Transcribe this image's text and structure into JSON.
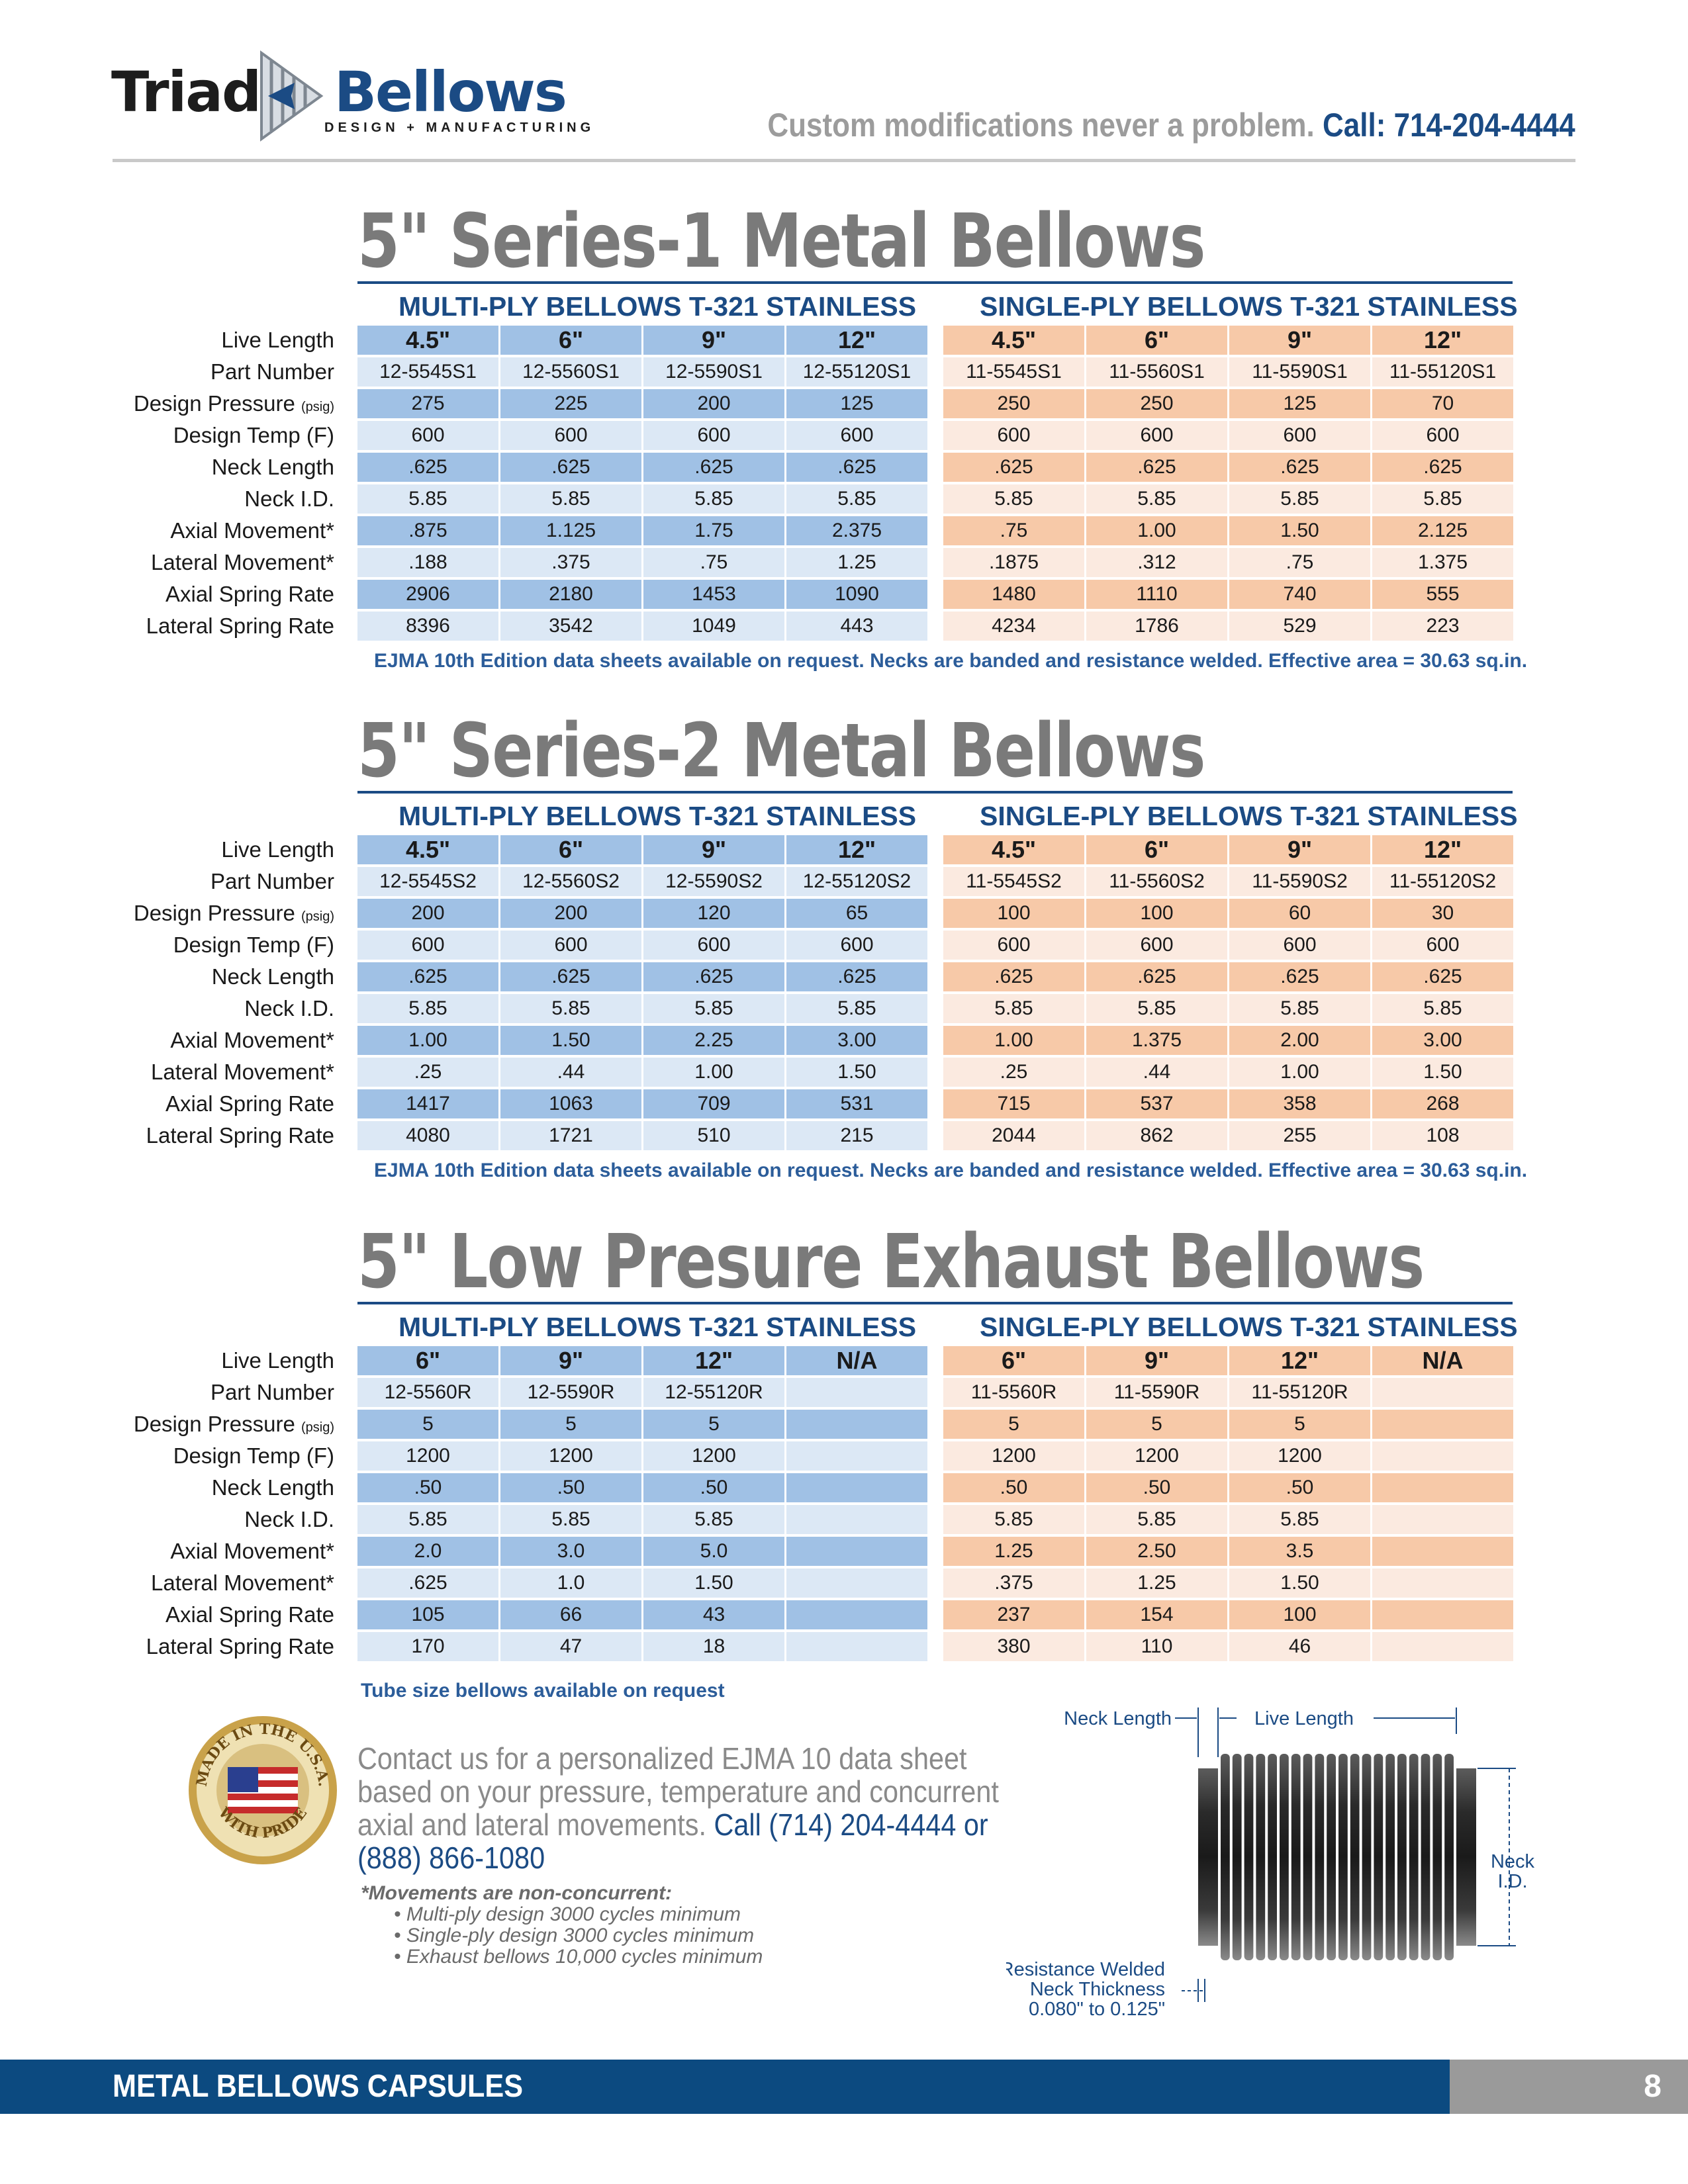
{
  "header": {
    "logo_left": "Triad",
    "logo_right": "Bellows",
    "logo_sub": "DESIGN + MANUFACTURING",
    "tagline": "Custom modifications never a problem.",
    "tagline_call": "Call: 714-204-4444"
  },
  "row_labels": [
    "Live Length",
    "Part Number",
    "Design Pressure",
    "Design Temp (F)",
    "Neck Length",
    "Neck I.D.",
    "Axial Movement*",
    "Lateral Movement*",
    "Axial Spring Rate",
    "Lateral Spring Rate"
  ],
  "pressure_unit": "(psig)",
  "sections": [
    {
      "title": "5\" Series-1 Metal Bellows",
      "multi_head": "MULTI-PLY BELLOWS T-321 STAINLESS",
      "single_head": "SINGLE-PLY BELLOWS T-321 STAINLESS",
      "multi": [
        [
          "4.5\"",
          "6\"",
          "9\"",
          "12\""
        ],
        [
          "12-5545S1",
          "12-5560S1",
          "12-5590S1",
          "12-55120S1"
        ],
        [
          "275",
          "225",
          "200",
          "125"
        ],
        [
          "600",
          "600",
          "600",
          "600"
        ],
        [
          ".625",
          ".625",
          ".625",
          ".625"
        ],
        [
          "5.85",
          "5.85",
          "5.85",
          "5.85"
        ],
        [
          ".875",
          "1.125",
          "1.75",
          "2.375"
        ],
        [
          ".188",
          ".375",
          ".75",
          "1.25"
        ],
        [
          "2906",
          "2180",
          "1453",
          "1090"
        ],
        [
          "8396",
          "3542",
          "1049",
          "443"
        ]
      ],
      "single": [
        [
          "4.5\"",
          "6\"",
          "9\"",
          "12\""
        ],
        [
          "11-5545S1",
          "11-5560S1",
          "11-5590S1",
          "11-55120S1"
        ],
        [
          "250",
          "250",
          "125",
          "70"
        ],
        [
          "600",
          "600",
          "600",
          "600"
        ],
        [
          ".625",
          ".625",
          ".625",
          ".625"
        ],
        [
          "5.85",
          "5.85",
          "5.85",
          "5.85"
        ],
        [
          ".75",
          "1.00",
          "1.50",
          "2.125"
        ],
        [
          ".1875",
          ".312",
          ".75",
          "1.375"
        ],
        [
          "1480",
          "1110",
          "740",
          "555"
        ],
        [
          "4234",
          "1786",
          "529",
          "223"
        ]
      ],
      "note": "EJMA 10th Edition data sheets available on request.  Necks are banded and resistance welded.  Effective area = 30.63 sq.in."
    },
    {
      "title": "5\" Series-2 Metal Bellows",
      "multi_head": "MULTI-PLY BELLOWS T-321 STAINLESS",
      "single_head": "SINGLE-PLY BELLOWS T-321 STAINLESS",
      "multi": [
        [
          "4.5\"",
          "6\"",
          "9\"",
          "12\""
        ],
        [
          "12-5545S2",
          "12-5560S2",
          "12-5590S2",
          "12-55120S2"
        ],
        [
          "200",
          "200",
          "120",
          "65"
        ],
        [
          "600",
          "600",
          "600",
          "600"
        ],
        [
          ".625",
          ".625",
          ".625",
          ".625"
        ],
        [
          "5.85",
          "5.85",
          "5.85",
          "5.85"
        ],
        [
          "1.00",
          "1.50",
          "2.25",
          "3.00"
        ],
        [
          ".25",
          ".44",
          "1.00",
          "1.50"
        ],
        [
          "1417",
          "1063",
          "709",
          "531"
        ],
        [
          "4080",
          "1721",
          "510",
          "215"
        ]
      ],
      "single": [
        [
          "4.5\"",
          "6\"",
          "9\"",
          "12\""
        ],
        [
          "11-5545S2",
          "11-5560S2",
          "11-5590S2",
          "11-55120S2"
        ],
        [
          "100",
          "100",
          "60",
          "30"
        ],
        [
          "600",
          "600",
          "600",
          "600"
        ],
        [
          ".625",
          ".625",
          ".625",
          ".625"
        ],
        [
          "5.85",
          "5.85",
          "5.85",
          "5.85"
        ],
        [
          "1.00",
          "1.375",
          "2.00",
          "3.00"
        ],
        [
          ".25",
          ".44",
          "1.00",
          "1.50"
        ],
        [
          "715",
          "537",
          "358",
          "268"
        ],
        [
          "2044",
          "862",
          "255",
          "108"
        ]
      ],
      "note": "EJMA 10th Edition data sheets available on request.  Necks are banded and resistance welded.  Effective area = 30.63 sq.in."
    },
    {
      "title": "5\" Low Presure Exhaust Bellows",
      "multi_head": "MULTI-PLY BELLOWS T-321 STAINLESS",
      "single_head": "SINGLE-PLY BELLOWS T-321 STAINLESS",
      "multi": [
        [
          "6\"",
          "9\"",
          "12\"",
          "N/A"
        ],
        [
          "12-5560R",
          "12-5590R",
          "12-55120R",
          ""
        ],
        [
          "5",
          "5",
          "5",
          ""
        ],
        [
          "1200",
          "1200",
          "1200",
          ""
        ],
        [
          ".50",
          ".50",
          ".50",
          ""
        ],
        [
          "5.85",
          "5.85",
          "5.85",
          ""
        ],
        [
          "2.0",
          "3.0",
          "5.0",
          ""
        ],
        [
          ".625",
          "1.0",
          "1.50",
          ""
        ],
        [
          "105",
          "66",
          "43",
          ""
        ],
        [
          "170",
          "47",
          "18",
          ""
        ]
      ],
      "single": [
        [
          "6\"",
          "9\"",
          "12\"",
          "N/A"
        ],
        [
          "11-5560R",
          "11-5590R",
          "11-55120R",
          ""
        ],
        [
          "5",
          "5",
          "5",
          ""
        ],
        [
          "1200",
          "1200",
          "1200",
          ""
        ],
        [
          ".50",
          ".50",
          ".50",
          ""
        ],
        [
          "5.85",
          "5.85",
          "5.85",
          ""
        ],
        [
          "1.25",
          "2.50",
          "3.5",
          ""
        ],
        [
          ".375",
          "1.25",
          "1.50",
          ""
        ],
        [
          "237",
          "154",
          "100",
          ""
        ],
        [
          "380",
          "110",
          "46",
          ""
        ]
      ],
      "note": ""
    }
  ],
  "tube_note": "Tube size bellows available on request",
  "seal": {
    "top": "MADE IN THE U.S.A.",
    "bottom": "WITH PRIDE"
  },
  "contact": {
    "text": "Contact us for a personalized EJMA 10 data sheet based on your pressure, temperature and concurrent axial and lateral movements.",
    "phone": "Call (714) 204-4444 or (888) 866-1080"
  },
  "movements": {
    "head": "*Movements are non-concurrent:",
    "items": [
      "• Multi-ply design 3000 cycles minimum",
      "• Single-ply design 3000 cycles minimum",
      "• Exhaust bellows 10,000 cycles minimum"
    ]
  },
  "diagram": {
    "neck_length": "Neck Length",
    "live_length": "Live Length",
    "neck_id_1": "Neck",
    "neck_id_2": "I.D.",
    "weld_1": "Resistance Welded",
    "weld_2": "Neck Thickness",
    "weld_3": "0.080\" to 0.125\""
  },
  "footer": {
    "title": "METAL BELLOWS CAPSULES",
    "page": "8"
  },
  "colors": {
    "brand_blue": "#1b4b84",
    "multi_dark": "#a0c1e5",
    "multi_light": "#dce8f5",
    "single_dark": "#f7c9a8",
    "single_light": "#fbeae0"
  }
}
